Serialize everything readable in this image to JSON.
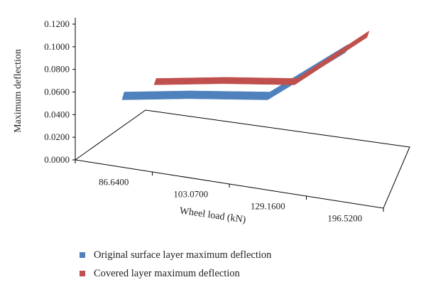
{
  "chart_data": {
    "type": "line",
    "categories": [
      "86.6400",
      "103.0700",
      "129.1600",
      "196.5200"
    ],
    "y_ticks": [
      "0.0000",
      "0.0200",
      "0.0400",
      "0.0600",
      "0.0800",
      "0.1000",
      "0.1200"
    ],
    "ylim": [
      0,
      0.12
    ],
    "ylabel": "Maximum deflection",
    "xlabel": "Wheel load (kN)",
    "series": [
      {
        "name": "Original surface layer maximum deflection",
        "color": "#4f81bd",
        "values": [
          0.06,
          0.061,
          0.06,
          0.102
        ]
      },
      {
        "name": "Covered layer maximum deflection",
        "color": "#c0504d",
        "values": [
          0.072,
          0.073,
          0.072,
          0.114
        ]
      }
    ]
  }
}
